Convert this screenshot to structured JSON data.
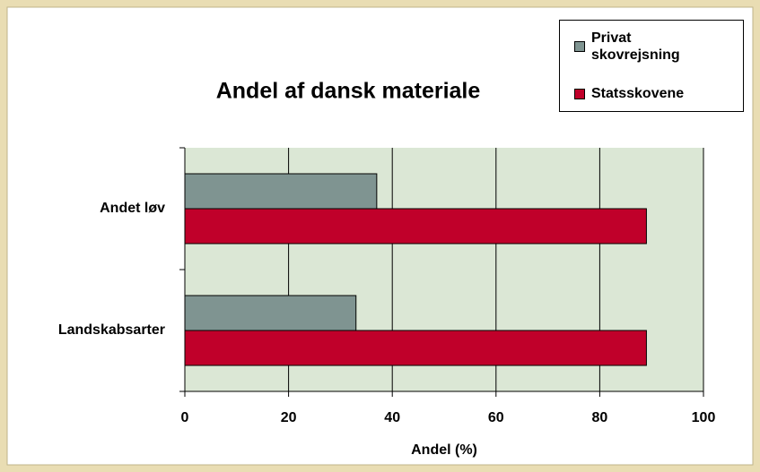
{
  "chart_data": {
    "type": "hbar",
    "title": "Andel af dansk materiale",
    "categories": [
      "Andet løv",
      "Landskabsarter"
    ],
    "series": [
      {
        "name": "Privat skovrejsning",
        "color": "#7f9491",
        "values": [
          37,
          33
        ]
      },
      {
        "name": "Statsskovene",
        "color": "#c0002a",
        "values": [
          89,
          89
        ]
      }
    ],
    "x_label": "Andel (%)",
    "xlim": [
      0,
      100
    ],
    "xticks": [
      0,
      20,
      40,
      60,
      80,
      100
    ],
    "grid": true,
    "legend": "top-right",
    "plot_background": "#dbe7d5"
  }
}
